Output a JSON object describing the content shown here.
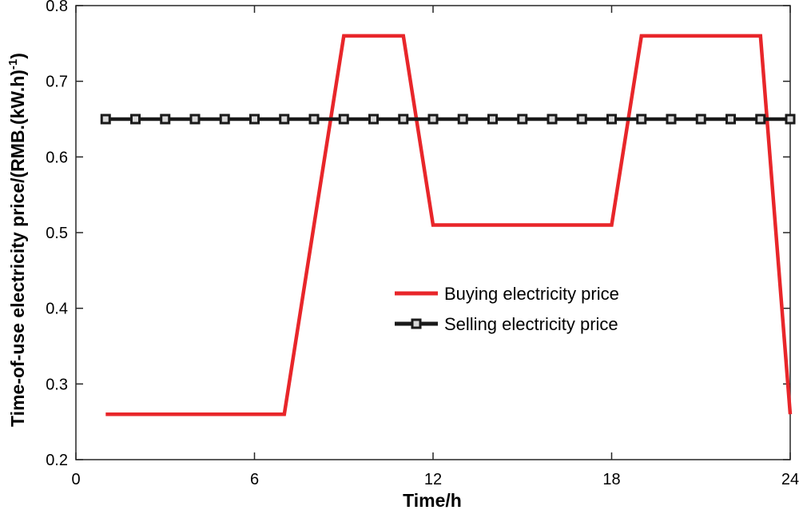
{
  "chart_data": {
    "type": "line",
    "x_label": "Time/h",
    "y_label": "Time-of-use electricity price/(RMB.(kW.h)",
    "y_label_superscript": "-1",
    "y_label_close": ")",
    "x_ticks": [
      "0",
      "6",
      "12",
      "18",
      "24"
    ],
    "y_ticks": [
      "0.2",
      "0.3",
      "0.4",
      "0.5",
      "0.6",
      "0.7",
      "0.8"
    ],
    "xlim": [
      0,
      24
    ],
    "ylim": [
      0.2,
      0.8
    ],
    "grid": false,
    "legend_position": "center-right",
    "series": [
      {
        "name": "Buying electricity price",
        "color": "#e8262a",
        "marker": "none",
        "x": [
          1,
          2,
          3,
          4,
          5,
          6,
          7,
          8,
          9,
          10,
          11,
          12,
          13,
          14,
          15,
          16,
          17,
          18,
          19,
          20,
          21,
          22,
          23,
          24
        ],
        "y": [
          0.26,
          0.26,
          0.26,
          0.26,
          0.26,
          0.26,
          0.26,
          0.51,
          0.76,
          0.76,
          0.76,
          0.51,
          0.51,
          0.51,
          0.51,
          0.51,
          0.51,
          0.51,
          0.76,
          0.76,
          0.76,
          0.76,
          0.76,
          0.26
        ]
      },
      {
        "name": "Selling electricity price",
        "color": "#1a1a1a",
        "marker": "square",
        "x": [
          1,
          2,
          3,
          4,
          5,
          6,
          7,
          8,
          9,
          10,
          11,
          12,
          13,
          14,
          15,
          16,
          17,
          18,
          19,
          20,
          21,
          22,
          23,
          24
        ],
        "y": [
          0.65,
          0.65,
          0.65,
          0.65,
          0.65,
          0.65,
          0.65,
          0.65,
          0.65,
          0.65,
          0.65,
          0.65,
          0.65,
          0.65,
          0.65,
          0.65,
          0.65,
          0.65,
          0.65,
          0.65,
          0.65,
          0.65,
          0.65,
          0.65
        ]
      }
    ]
  }
}
